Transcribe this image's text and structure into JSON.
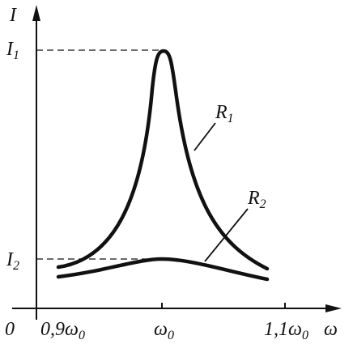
{
  "axes": {
    "y_label": "I",
    "x_label": "ω",
    "origin": "0"
  },
  "y_marks": [
    {
      "base": "I",
      "sub": "1"
    },
    {
      "base": "I",
      "sub": "2"
    }
  ],
  "x_marks": [
    {
      "base": "0,9ω",
      "sub": "0"
    },
    {
      "base": "ω",
      "sub": "0"
    },
    {
      "base": "1,1ω",
      "sub": "0"
    }
  ],
  "curves": [
    {
      "base": "R",
      "sub": "1"
    },
    {
      "base": "R",
      "sub": "2"
    }
  ]
}
